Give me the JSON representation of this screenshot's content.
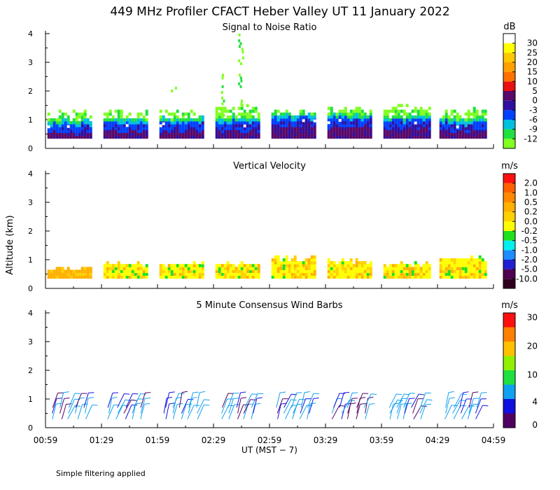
{
  "title": "449 MHz Profiler CFACT Heber Valley UT 11 January 2022",
  "xlabel": "UT  (MST − 7)",
  "ylabel": "Altitude (km)",
  "footer": "Simple filtering applied",
  "x_ticks": [
    "00:59",
    "01:29",
    "01:59",
    "02:29",
    "02:59",
    "03:29",
    "03:59",
    "04:29",
    "04:59"
  ],
  "y_ticks": [
    "0",
    "1",
    "2",
    "3",
    "4"
  ],
  "colors": {
    "snr": [
      "#80ff20",
      "#20e040",
      "#00c0e0",
      "#0040ff",
      "#3010a0",
      "#5a0a6a",
      "#e81010",
      "#ff7000",
      "#ff9f00",
      "#ffc800",
      "#ffff00",
      "#ffffff"
    ],
    "vv": [
      "#300020",
      "#500050",
      "#2020d0",
      "#1e8cff",
      "#00f0f0",
      "#20e020",
      "#ffff00",
      "#ffd000",
      "#ffb000",
      "#ff8800",
      "#ff6000",
      "#ff1010"
    ],
    "wind": [
      "#500060",
      "#1010e0",
      "#10a0f0",
      "#20e040",
      "#90f000",
      "#ffc000",
      "#ff8000",
      "#ff1010"
    ]
  },
  "chart_data": [
    {
      "type": "heatmap",
      "name": "snr",
      "title": "Signal to Noise Ratio",
      "unit": "dB",
      "xlim": [
        0.983,
        4.983
      ],
      "ylim": [
        0,
        4
      ],
      "levels": [
        "-12",
        "-9",
        "-6",
        "-3",
        "0",
        "5",
        "10",
        "15",
        "20",
        "25",
        "30"
      ],
      "segments": [
        {
          "start": 1.0,
          "end": 1.4,
          "base_top": 0.75,
          "echo_top": 1.2
        },
        {
          "start": 1.5,
          "end": 1.9,
          "base_top": 0.8,
          "echo_top": 1.2
        },
        {
          "start": 2.0,
          "end": 2.4,
          "base_top": 0.8,
          "echo_top": 1.25
        },
        {
          "start": 2.5,
          "end": 2.9,
          "base_top": 0.8,
          "echo_top": 1.4
        },
        {
          "start": 3.0,
          "end": 3.4,
          "base_top": 0.95,
          "echo_top": 1.2
        },
        {
          "start": 3.5,
          "end": 3.9,
          "base_top": 0.95,
          "echo_top": 1.35
        },
        {
          "start": 4.0,
          "end": 4.4,
          "base_top": 0.9,
          "echo_top": 1.4
        },
        {
          "start": 4.5,
          "end": 4.9,
          "base_top": 0.8,
          "echo_top": 1.3
        }
      ],
      "bottom_gate": 0.35,
      "spikes": [
        {
          "x": 2.72,
          "bottom": 1.4,
          "top": 4.0
        },
        {
          "x": 2.55,
          "bottom": 1.1,
          "top": 2.6
        },
        {
          "x": 2.12,
          "bottom": 1.95,
          "top": 2.1
        }
      ]
    },
    {
      "type": "heatmap",
      "name": "vertical_velocity",
      "title": "Vertical Velocity",
      "unit": "m/s",
      "xlim": [
        0.983,
        4.983
      ],
      "ylim": [
        0,
        4
      ],
      "levels": [
        "-10.0",
        "-5.0",
        "-2.0",
        "-1.0",
        "-0.5",
        "-0.2",
        "0.0",
        "0.2",
        "0.5",
        "1.0",
        "2.0"
      ],
      "segments": [
        {
          "start": 1.0,
          "end": 1.4,
          "top": 0.65,
          "dominant": "0.0 to 0.2"
        },
        {
          "start": 1.5,
          "end": 1.9,
          "top": 0.8,
          "dominant": "-0.2 to 0.0"
        },
        {
          "start": 2.0,
          "end": 2.4,
          "top": 0.8,
          "dominant": "-0.2 to 0.0"
        },
        {
          "start": 2.5,
          "end": 2.9,
          "top": 0.8,
          "dominant": "-0.2 to 0.0"
        },
        {
          "start": 3.0,
          "end": 3.4,
          "top": 1.0,
          "dominant": "-0.2 to 0.0"
        },
        {
          "start": 3.5,
          "end": 3.9,
          "top": 0.9,
          "dominant": "-0.2 to 0.0"
        },
        {
          "start": 4.0,
          "end": 4.4,
          "top": 0.8,
          "dominant": "-0.2 to 0.0"
        },
        {
          "start": 4.5,
          "end": 4.9,
          "top": 1.0,
          "dominant": "-0.2 to 0.0"
        }
      ],
      "bottom_gate": 0.35
    },
    {
      "type": "wind_barbs",
      "name": "wind",
      "title": "5 Minute Consensus Wind Barbs",
      "unit": "m/s",
      "xlim": [
        0.983,
        4.983
      ],
      "ylim": [
        0,
        4
      ],
      "levels": [
        "0",
        "4",
        "10",
        "20",
        "30"
      ],
      "level_values": [
        0,
        2,
        4,
        7,
        10,
        15,
        20,
        30,
        35
      ],
      "altitudes": [
        0.3,
        0.5,
        0.7
      ],
      "times": [
        1.05,
        1.12,
        1.19,
        1.26,
        1.33,
        1.55,
        1.62,
        1.69,
        1.76,
        1.83,
        2.05,
        2.12,
        2.19,
        2.26,
        2.33,
        2.55,
        2.62,
        2.69,
        2.76,
        2.83,
        3.05,
        3.12,
        3.19,
        3.26,
        3.33,
        3.55,
        3.62,
        3.69,
        3.76,
        3.83,
        4.05,
        4.12,
        4.19,
        4.26,
        4.33,
        4.55,
        4.62,
        4.69,
        4.76,
        4.83
      ],
      "typical_speed_ms": [
        2,
        4
      ],
      "typical_direction": "north-northeast"
    }
  ]
}
